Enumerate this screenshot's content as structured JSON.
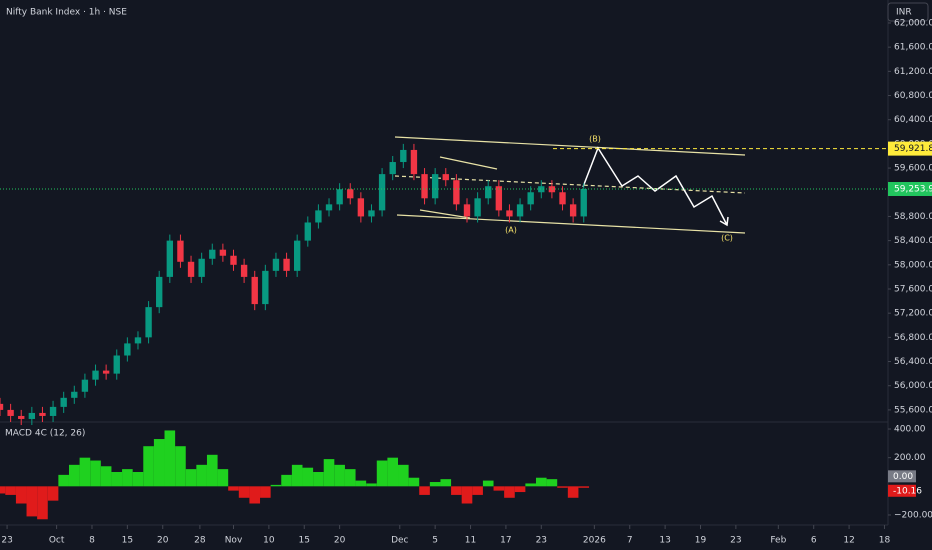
{
  "chart_data": [
    {
      "type": "candlestick",
      "title": "Nifty Bank Index · 1h · NSE",
      "currency": "INR",
      "x": [
        0,
        3,
        6,
        9,
        12,
        15,
        18,
        21,
        24,
        27,
        30,
        33,
        36,
        39,
        42,
        45,
        48,
        51,
        54,
        57,
        60,
        63,
        66,
        69,
        72,
        75,
        78,
        81,
        84,
        87,
        90,
        93,
        96,
        99,
        102,
        105,
        108,
        111,
        114,
        117,
        120,
        123,
        126,
        129,
        132,
        135,
        138,
        141,
        144,
        147,
        150,
        153,
        156,
        159,
        162,
        165
      ],
      "open": [
        55700,
        55600,
        55500,
        55450,
        55550,
        55500,
        55650,
        55800,
        55900,
        56100,
        56250,
        56200,
        56500,
        56700,
        56800,
        57300,
        57800,
        58400,
        58050,
        57800,
        58100,
        58250,
        58150,
        58000,
        57800,
        57350,
        57900,
        58100,
        57900,
        58400,
        58700,
        58900,
        59000,
        59250,
        59100,
        58800,
        58900,
        59500,
        59700,
        59900,
        59500,
        59100,
        59500,
        59400,
        59000,
        58800,
        59100,
        59300,
        58900,
        58800,
        59000,
        59200,
        59300,
        59200,
        59000,
        58800
      ],
      "high": [
        55800,
        55700,
        55600,
        55650,
        55650,
        55750,
        55900,
        56000,
        56200,
        56350,
        56350,
        56600,
        56800,
        56900,
        57400,
        57900,
        58500,
        58500,
        58150,
        58200,
        58350,
        58350,
        58250,
        58100,
        57900,
        58000,
        58200,
        58200,
        58500,
        58800,
        59000,
        59100,
        59350,
        59350,
        59200,
        59000,
        59600,
        59800,
        60000,
        60000,
        59600,
        59600,
        59600,
        59500,
        59100,
        59200,
        59400,
        59400,
        59000,
        59100,
        59300,
        59400,
        59400,
        59300,
        59100,
        59350
      ],
      "low": [
        55500,
        55400,
        55350,
        55350,
        55400,
        55400,
        55550,
        55700,
        55800,
        56000,
        56100,
        56100,
        56400,
        56600,
        56700,
        57200,
        57700,
        57950,
        57700,
        57700,
        58000,
        58050,
        57900,
        57700,
        57250,
        57250,
        57800,
        57800,
        57800,
        58300,
        58600,
        58800,
        58900,
        59000,
        58700,
        58700,
        58800,
        59400,
        59600,
        59400,
        59000,
        59000,
        59300,
        58900,
        58700,
        58700,
        59000,
        58800,
        58700,
        58700,
        58900,
        59100,
        59100,
        58900,
        58700,
        58700
      ],
      "close": [
        55600,
        55500,
        55450,
        55550,
        55500,
        55650,
        55800,
        55900,
        56100,
        56250,
        56200,
        56500,
        56700,
        56800,
        57300,
        57800,
        58400,
        58050,
        57800,
        58100,
        58250,
        58150,
        58000,
        57800,
        57350,
        57900,
        58100,
        57900,
        58400,
        58700,
        58900,
        59000,
        59250,
        59100,
        58800,
        58900,
        59500,
        59700,
        59900,
        59500,
        59100,
        59500,
        59400,
        59000,
        58800,
        59100,
        59300,
        58900,
        58800,
        59000,
        59200,
        59300,
        59200,
        59000,
        58800,
        59253.95
      ],
      "up_color": "#089981",
      "down_color": "#f23645",
      "xlim": [
        0,
        251
      ],
      "xticks": [
        {
          "value": 2,
          "label": "23"
        },
        {
          "value": 16,
          "label": "Oct"
        },
        {
          "value": 26,
          "label": "8"
        },
        {
          "value": 36,
          "label": "15"
        },
        {
          "value": 46,
          "label": "20"
        },
        {
          "value": 56.5,
          "label": "28"
        },
        {
          "value": 66,
          "label": "Nov"
        },
        {
          "value": 76,
          "label": "10"
        },
        {
          "value": 86,
          "label": "15"
        },
        {
          "value": 96,
          "label": "20"
        },
        {
          "value": 113,
          "label": "Dec"
        },
        {
          "value": 123,
          "label": "5"
        },
        {
          "value": 133,
          "label": "11"
        },
        {
          "value": 143,
          "label": "17"
        },
        {
          "value": 153,
          "label": "23"
        },
        {
          "value": 168,
          "label": "2026"
        },
        {
          "value": 178,
          "label": "7"
        },
        {
          "value": 188,
          "label": "13"
        },
        {
          "value": 198,
          "label": "19"
        },
        {
          "value": 208,
          "label": "23"
        },
        {
          "value": 220,
          "label": "Feb"
        },
        {
          "value": 230,
          "label": "6"
        },
        {
          "value": 240,
          "label": "12"
        },
        {
          "value": 250,
          "label": "18"
        }
      ],
      "ylim": [
        55400,
        62380
      ],
      "yticks": [
        {
          "value": 55600,
          "label": "55,600.00"
        },
        {
          "value": 56000,
          "label": "56,000.00"
        },
        {
          "value": 56400,
          "label": "56,400.00"
        },
        {
          "value": 56800,
          "label": "56,800.00"
        },
        {
          "value": 57200,
          "label": "57,200.00"
        },
        {
          "value": 57600,
          "label": "57,600.00"
        },
        {
          "value": 58000,
          "label": "58,000.00"
        },
        {
          "value": 58400,
          "label": "58,400.00"
        },
        {
          "value": 58800,
          "label": "58,800.00"
        },
        {
          "value": 59200,
          "label": "59,200.00"
        },
        {
          "value": 59600,
          "label": "59,600.00"
        },
        {
          "value": 60000,
          "label": "60,000.00"
        },
        {
          "value": 60400,
          "label": "60,400.00"
        },
        {
          "value": 60800,
          "label": "60,800.00"
        },
        {
          "value": 61200,
          "label": "61,200.00"
        },
        {
          "value": 61600,
          "label": "61,600.00"
        },
        {
          "value": 62000,
          "label": "62,000.00"
        }
      ],
      "price_labels": [
        {
          "value": 59921.85,
          "label": "59,921.85",
          "color": "#ffeb3b"
        },
        {
          "value": 59253.95,
          "label": "59,253.95",
          "color": "#22c55e"
        }
      ],
      "annotations": [
        "(A)",
        "(B)",
        "(C)"
      ]
    },
    {
      "type": "histogram",
      "title": "MACD 4C (12, 26)",
      "values": [
        -50,
        -60,
        -120,
        -210,
        -230,
        -100,
        80,
        150,
        200,
        180,
        140,
        100,
        120,
        100,
        280,
        330,
        390,
        280,
        120,
        150,
        220,
        120,
        -30,
        -80,
        -120,
        -80,
        10,
        80,
        150,
        130,
        100,
        190,
        150,
        120,
        40,
        20,
        180,
        200,
        150,
        60,
        -60,
        30,
        50,
        -60,
        -120,
        -60,
        40,
        -30,
        -80,
        -40,
        20,
        60,
        50,
        -10,
        -80,
        -10.16
      ],
      "up_color": "#1fd11f",
      "down_color": "#e01b1b",
      "ylim": [
        -270,
        449
      ],
      "yticks": [
        {
          "value": 400,
          "label": "400.00"
        },
        {
          "value": 200,
          "label": "200.00"
        },
        {
          "value": -200,
          "label": "−200.00"
        }
      ],
      "last_values": [
        {
          "value": 0,
          "label": "0.00",
          "color": "#787b86"
        },
        {
          "value": -10.16,
          "label": "-10.16",
          "color": "#e01b1b"
        }
      ]
    }
  ]
}
